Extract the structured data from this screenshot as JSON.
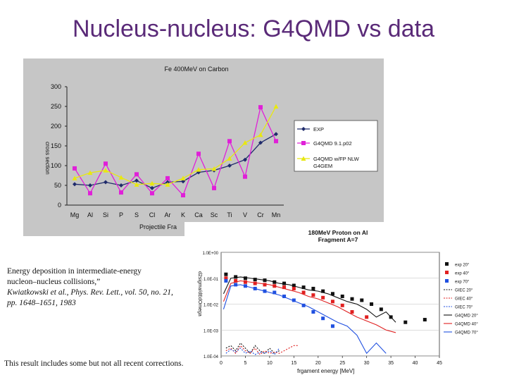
{
  "slide": {
    "title": "Nucleus-nucleus: G4QMD vs data",
    "caption_line1": "Energy deposition in intermediate-energy",
    "caption_line2": "nucleon–nucleus collisions,”",
    "caption_line3": "Kwiatkowski et al., Phys. Rev. Lett., vol. 50, no. 21, pp. 1648–1651, 1983",
    "note": "This result includes some but not all recent corrections."
  },
  "chart_data": [
    {
      "type": "line",
      "title": "Fe 400MeV on Carbon",
      "xlabel": "Projectile Fra",
      "ylabel": "cross section",
      "ylim": [
        0,
        300
      ],
      "yticks": [
        "0",
        "50",
        "100",
        "150",
        "200",
        "250",
        "300"
      ],
      "categories": [
        "Mg",
        "Al",
        "Si",
        "P",
        "S",
        "Cl",
        "Ar",
        "K",
        "Ca",
        "Sc",
        "Ti",
        "V",
        "Cr",
        "Mn"
      ],
      "series": [
        {
          "name": "EXP",
          "color": "#1f2a6b",
          "values": [
            53,
            50,
            58,
            50,
            62,
            43,
            58,
            60,
            83,
            88,
            100,
            115,
            158,
            180
          ]
        },
        {
          "name": "G4QMD 9.1.p02",
          "color": "#e020d8",
          "values": [
            93,
            30,
            105,
            32,
            78,
            30,
            68,
            25,
            130,
            43,
            162,
            72,
            248,
            162
          ]
        },
        {
          "name": "G4QMD w/FP NLW G4GEM",
          "color": "#e8e810",
          "values": [
            68,
            82,
            88,
            70,
            52,
            55,
            52,
            68,
            90,
            92,
            118,
            158,
            178,
            250
          ]
        }
      ],
      "legend": [
        "EXP",
        "G4QMD 9.1.p02",
        "G4QMD w/FP NLW",
        "G4GEM"
      ]
    },
    {
      "type": "scatter",
      "title": "180MeV Proton on Al",
      "subtitle": "Fragment A=7",
      "xlabel": "frgament energy [MeV]",
      "ylabel": "d2sigma/dEdOmega",
      "xlim": [
        0,
        45
      ],
      "ylim": [
        "1.0E-04",
        "1.0E+00"
      ],
      "xticks": [
        "0",
        "5",
        "10",
        "15",
        "20",
        "25",
        "30",
        "35",
        "40",
        "45"
      ],
      "yticks": [
        "1.0E+00",
        "1.0E-01",
        "1.0E-02",
        "1.0E-03",
        "1.0E-04"
      ],
      "legend": [
        "exp 20°",
        "exp 40°",
        "exp 70°",
        "GIEC 20°",
        "GIEC 40°",
        "GIEC 70°",
        "G4QMD 20°",
        "G4QMD 40°",
        "G4QMD 70°"
      ],
      "series": [
        {
          "name": "exp 20°",
          "color": "#111111",
          "style": "square",
          "x": [
            1,
            3,
            5,
            7,
            9,
            11,
            13,
            15,
            17,
            19,
            21,
            23,
            25,
            27,
            29,
            31,
            33,
            35,
            38,
            42
          ],
          "logy": [
            -0.85,
            -0.95,
            -1.0,
            -1.05,
            -1.08,
            -1.15,
            -1.2,
            -1.28,
            -1.35,
            -1.4,
            -1.5,
            -1.6,
            -1.7,
            -1.8,
            -1.85,
            -2.0,
            -2.2,
            -2.5,
            -2.7,
            -2.6
          ]
        },
        {
          "name": "exp 40°",
          "color": "#e02020",
          "style": "square",
          "x": [
            1,
            3,
            5,
            7,
            9,
            11,
            13,
            15,
            17,
            19,
            21,
            23,
            25,
            27,
            30
          ],
          "logy": [
            -1.0,
            -1.1,
            -1.15,
            -1.2,
            -1.25,
            -1.3,
            -1.35,
            -1.4,
            -1.55,
            -1.65,
            -1.75,
            -1.9,
            -2.05,
            -2.3,
            -2.5
          ]
        },
        {
          "name": "exp 70°",
          "color": "#2050e0",
          "style": "square",
          "x": [
            1,
            3,
            5,
            7,
            9,
            11,
            13,
            15,
            17,
            19,
            21,
            23
          ],
          "logy": [
            -1.1,
            -1.25,
            -1.3,
            -1.4,
            -1.5,
            -1.55,
            -1.7,
            -1.85,
            -2.05,
            -2.3,
            -2.55,
            -2.85
          ]
        },
        {
          "name": "G4QMD 20°",
          "color": "#111111",
          "style": "line",
          "x": [
            0.5,
            2,
            4,
            6,
            8,
            10,
            12,
            14,
            16,
            18,
            20,
            22,
            24,
            26,
            28,
            30,
            32,
            34,
            36
          ],
          "logy": [
            -1.6,
            -1.0,
            -0.95,
            -1.0,
            -1.05,
            -1.1,
            -1.2,
            -1.25,
            -1.35,
            -1.45,
            -1.5,
            -1.6,
            -1.75,
            -1.9,
            -2.0,
            -2.2,
            -2.5,
            -2.3,
            -2.7
          ]
        },
        {
          "name": "G4QMD 40°",
          "color": "#e02020",
          "style": "line",
          "x": [
            0.5,
            2,
            4,
            6,
            8,
            10,
            12,
            14,
            16,
            18,
            20,
            22,
            24,
            26,
            28,
            30,
            32,
            34,
            36
          ],
          "logy": [
            -1.9,
            -1.2,
            -1.1,
            -1.15,
            -1.2,
            -1.25,
            -1.35,
            -1.45,
            -1.55,
            -1.7,
            -1.8,
            -1.95,
            -2.1,
            -2.3,
            -2.5,
            -2.65,
            -2.8,
            -3.0,
            -3.1
          ]
        },
        {
          "name": "G4QMD 70°",
          "color": "#2050e0",
          "style": "line",
          "x": [
            0.5,
            2,
            4,
            6,
            8,
            10,
            12,
            14,
            16,
            18,
            20,
            22,
            24,
            26,
            28,
            30,
            32,
            34
          ],
          "logy": [
            -2.2,
            -1.3,
            -1.25,
            -1.35,
            -1.45,
            -1.55,
            -1.65,
            -1.8,
            -1.95,
            -2.1,
            -2.3,
            -2.5,
            -2.7,
            -2.85,
            -3.2,
            -3.9,
            -3.5,
            -3.9
          ]
        },
        {
          "name": "GIEC 20°",
          "color": "#111111",
          "style": "dotted",
          "x": [
            1,
            2,
            3,
            4,
            5,
            6,
            7,
            8,
            9,
            10,
            11,
            12
          ],
          "logy": [
            -3.7,
            -3.6,
            -3.8,
            -3.5,
            -3.7,
            -3.9,
            -3.6,
            -3.8,
            -3.9,
            -3.7,
            -3.9,
            -3.8
          ]
        },
        {
          "name": "GIEC 40°",
          "color": "#e02020",
          "style": "dotted",
          "x": [
            1,
            2,
            3,
            4,
            5,
            6,
            7,
            8,
            9,
            10,
            11,
            12,
            15,
            16
          ],
          "logy": [
            -3.8,
            -3.7,
            -3.9,
            -3.6,
            -3.8,
            -3.9,
            -3.7,
            -3.95,
            -3.8,
            -3.9,
            -3.85,
            -3.9,
            -3.6,
            -3.6
          ]
        },
        {
          "name": "GIEC 70°",
          "color": "#2050e0",
          "style": "dotted",
          "x": [
            1,
            2,
            3,
            4,
            5,
            6,
            7,
            8,
            9,
            10,
            11,
            12
          ],
          "logy": [
            -3.9,
            -3.75,
            -3.85,
            -3.7,
            -3.9,
            -3.8,
            -3.95,
            -3.85,
            -3.9,
            -3.8,
            -3.95,
            -3.7
          ]
        }
      ]
    }
  ]
}
